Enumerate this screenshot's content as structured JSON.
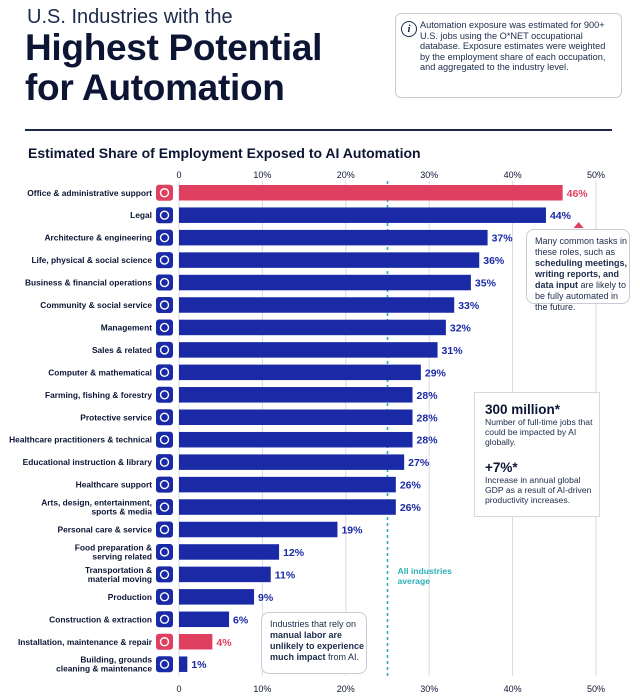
{
  "header": {
    "pretitle": "U.S. Industries with the",
    "title_line1": "Highest Potential",
    "title_line2": "for Automation",
    "note": "Automation exposure was estimated for 900+ U.S. jobs using the O*NET occupational database. Exposure estimates were weighted by the employment share of each occupation, and aggregated to the industry level.",
    "note_icon": "info-icon"
  },
  "chart_data": {
    "type": "bar",
    "orientation": "horizontal",
    "title": "Estimated Share of Employment Exposed to AI Automation",
    "categories": [
      "Office & administrative support",
      "Legal",
      "Architecture & engineering",
      "Life, physical & social science",
      "Business & financial operations",
      "Community & social service",
      "Management",
      "Sales & related",
      "Computer & mathematical",
      "Farming, fishing & forestry",
      "Protective service",
      "Healthcare practitioners & technical",
      "Educational instruction & library",
      "Healthcare support",
      "Arts, design, entertainment, sports & media",
      "Personal care & service",
      "Food preparation & serving related",
      "Transportation & material moving",
      "Production",
      "Construction & extraction",
      "Installation, maintenance & repair",
      "Building, grounds cleaning & maintenance"
    ],
    "values": [
      46,
      44,
      37,
      36,
      35,
      33,
      32,
      31,
      29,
      28,
      28,
      28,
      27,
      26,
      26,
      19,
      12,
      11,
      9,
      6,
      4,
      1
    ],
    "value_labels": [
      "46%",
      "44%",
      "37%",
      "36%",
      "35%",
      "33%",
      "32%",
      "31%",
      "29%",
      "28%",
      "28%",
      "28%",
      "27%",
      "26%",
      "26%",
      "19%",
      "12%",
      "11%",
      "9%",
      "6%",
      "4%",
      "1%"
    ],
    "highlighted": [
      "Office & administrative support",
      "Installation, maintenance & repair"
    ],
    "icons": [
      "briefcase-icon",
      "gavel-icon",
      "building-icon",
      "atom-icon",
      "dollar-icon",
      "people-icon",
      "org-chart-icon",
      "cash-register-icon",
      "gear-icon",
      "leaf-icon",
      "lock-icon",
      "stethoscope-icon",
      "graduation-cap-icon",
      "heartbeat-icon",
      "drama-masks-icon",
      "scissors-icon",
      "food-icon",
      "truck-icon",
      "factory-icon",
      "excavator-icon",
      "wrench-icon",
      "broom-icon"
    ],
    "xlim": [
      0,
      50
    ],
    "ticks": [
      0,
      10,
      20,
      30,
      40,
      50
    ],
    "tick_labels": [
      "0",
      "10%",
      "20%",
      "30%",
      "40%",
      "50%"
    ],
    "reference_line": {
      "value": 25,
      "label_line1": "All industries",
      "label_line2": "average"
    },
    "colors": {
      "bar": "#1a2aa6",
      "highlight": "#e0405f",
      "reference": "#2bb0b8",
      "label": "#0c1534"
    },
    "grid": true
  },
  "callouts": {
    "top": {
      "t1": "Many common tasks in these roles, such as ",
      "b1": "scheduling meetings, writing reports, and data input",
      "t2": " are likely to be fully automated in the future."
    },
    "bottom": {
      "t1": "Industries that rely on ",
      "b1": "manual labor are unlikely to experience much impact",
      "t2": " from AI."
    }
  },
  "stats": {
    "stat1_value": "300 million*",
    "stat1_text": "Number of full-time jobs that could be impacted by AI globally.",
    "stat2_value": "+7%*",
    "stat2_text": "Increase in annual global GDP as a result of AI-driven productivity increases."
  }
}
